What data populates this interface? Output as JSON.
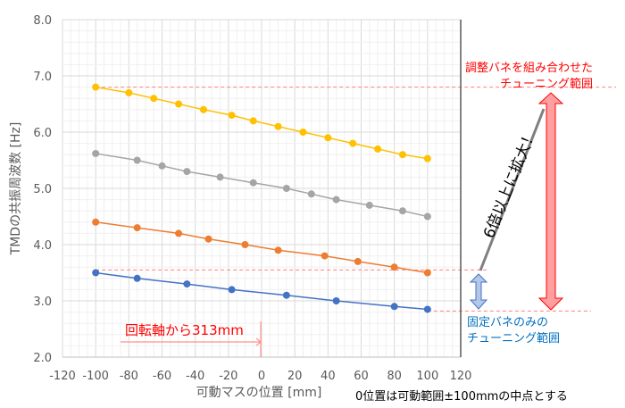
{
  "chart_data": {
    "type": "line",
    "title": "",
    "xlabel": "可動マスの位置 [mm]",
    "ylabel": "TMDの共振周波数 [Hz]",
    "xlim": [
      -120,
      120
    ],
    "ylim": [
      2.0,
      8.0
    ],
    "xticks": [
      "-120",
      "-100",
      "-80",
      "-60",
      "-40",
      "-20",
      "0",
      "20",
      "40",
      "60",
      "80",
      "100",
      "120"
    ],
    "yticks": [
      "2.0",
      "3.0",
      "4.0",
      "5.0",
      "6.0",
      "7.0",
      "8.0"
    ],
    "grid": true,
    "series": [
      {
        "color": "#ffc000",
        "x": [
          -100,
          -80,
          -65,
          -50,
          -35,
          -18,
          -5,
          10,
          25,
          40,
          55,
          70,
          85,
          100
        ],
        "y": [
          6.8,
          6.7,
          6.6,
          6.5,
          6.4,
          6.3,
          6.2,
          6.1,
          6.0,
          5.9,
          5.8,
          5.7,
          5.6,
          5.53
        ]
      },
      {
        "color": "#a5a5a5",
        "x": [
          -100,
          -75,
          -60,
          -45,
          -25,
          -5,
          15,
          30,
          45,
          65,
          85,
          100
        ],
        "y": [
          5.62,
          5.5,
          5.4,
          5.3,
          5.2,
          5.1,
          5.0,
          4.9,
          4.8,
          4.7,
          4.6,
          4.5
        ]
      },
      {
        "color": "#ed7d31",
        "x": [
          -100,
          -75,
          -50,
          -32,
          -10,
          10,
          38,
          58,
          80,
          100
        ],
        "y": [
          4.4,
          4.3,
          4.2,
          4.1,
          4.0,
          3.9,
          3.8,
          3.7,
          3.6,
          3.5
        ]
      },
      {
        "color": "#4472c4",
        "x": [
          -100,
          -75,
          -45,
          -18,
          15,
          45,
          80,
          100
        ],
        "y": [
          3.5,
          3.4,
          3.3,
          3.2,
          3.1,
          3.0,
          2.9,
          2.85
        ]
      }
    ],
    "reference_lines_y": [
      6.8,
      3.55,
      2.82
    ],
    "annotations": {
      "combined_range": [
        "調整バネを組み合わせた",
        "チューニング範囲"
      ],
      "fixed_range": [
        "固定バネのみの",
        "チューニング範囲"
      ],
      "expansion": "6倍以上に拡大！",
      "offset": "回転軸から313mm",
      "note": "0位置は可動範囲±100mmの中点とする"
    },
    "colors": {
      "annotation_red": "#ff0000",
      "annotation_blue": "#0070c0"
    }
  }
}
